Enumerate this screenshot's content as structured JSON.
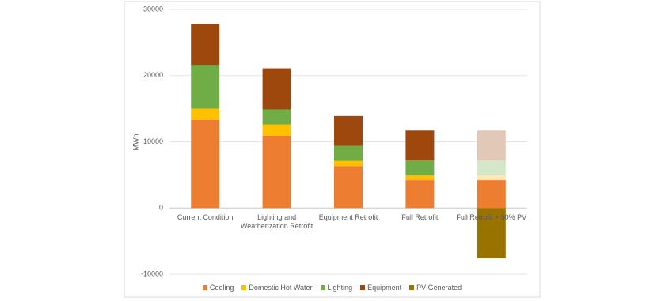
{
  "chart_data": {
    "type": "stacked_bar",
    "y_label": "MWh",
    "categories": [
      "Current Condition",
      "Lighting and Weatherization Retrofit",
      "Equipment Retrofit",
      "Full Retrofit",
      "Full Retrofit + 50% PV"
    ],
    "series": [
      {
        "name": "Cooling",
        "color": "#ed7d31",
        "colors": [
          "#ed7d31",
          "#ed7d31",
          "#ed7d31",
          "#ed7d31",
          "#ed7d31"
        ],
        "values": [
          13300,
          10900,
          6300,
          4200,
          4200
        ]
      },
      {
        "name": "Domestic Hot Water",
        "color": "#ffc000",
        "colors": [
          "#ffc000",
          "#ffc000",
          "#ffc000",
          "#ffc000",
          "#ffe9b3"
        ],
        "values": [
          1700,
          1700,
          800,
          700,
          700
        ]
      },
      {
        "name": "Lighting",
        "color": "#70ad47",
        "colors": [
          "#70ad47",
          "#70ad47",
          "#70ad47",
          "#70ad47",
          "#d4e7c8"
        ],
        "values": [
          6600,
          2300,
          2300,
          2300,
          2300
        ]
      },
      {
        "name": "Equipment",
        "color": "#9e480e",
        "colors": [
          "#9e480e",
          "#9e480e",
          "#9e480e",
          "#9e480e",
          "#e2c8b7"
        ],
        "values": [
          6200,
          6200,
          4500,
          4500,
          4500
        ]
      },
      {
        "name": "PV Generated",
        "color": "#997300",
        "colors": [
          "#997300",
          "#997300",
          "#997300",
          "#997300",
          "#997300"
        ],
        "values": [
          null,
          null,
          null,
          null,
          -7600
        ]
      }
    ],
    "ylim": [
      -10000,
      30000
    ],
    "yticks": [
      -10000,
      0,
      10000,
      20000,
      30000
    ],
    "grid": true,
    "legend": "bottom"
  }
}
